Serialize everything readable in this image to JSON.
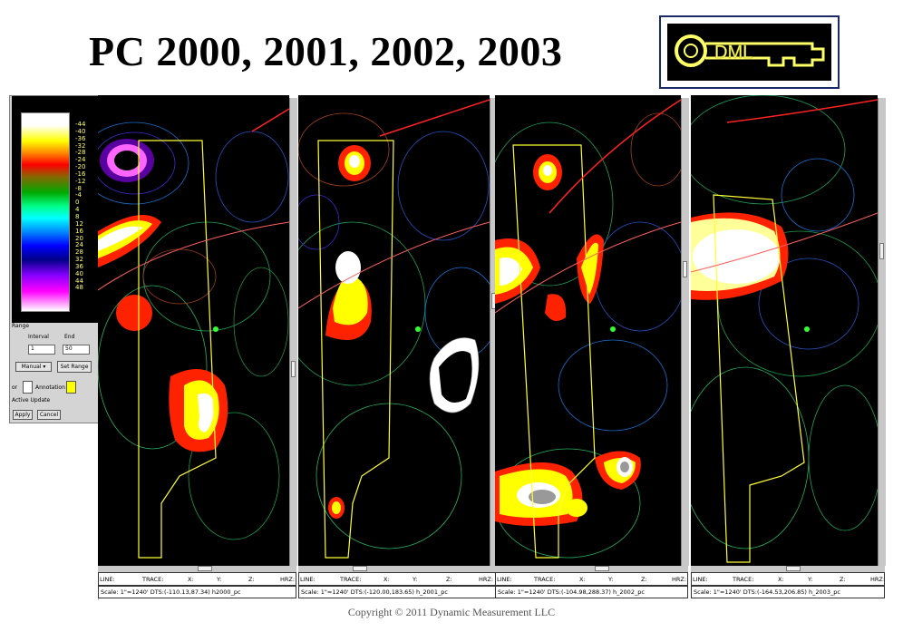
{
  "title": "PC 2000, 2001, 2002, 2003",
  "logo": {
    "text": "DML"
  },
  "colors": {
    "contour_outline": "#ffff33",
    "well_path": "#ff2222",
    "background": "#000000"
  },
  "legend": {
    "ticks": [
      "-44",
      "-40",
      "-36",
      "-32",
      "-28",
      "-24",
      "-20",
      "-16",
      "-12",
      "-8",
      "-4",
      "0",
      "4",
      "8",
      "12",
      "16",
      "20",
      "24",
      "28",
      "32",
      "36",
      "40",
      "44",
      "48"
    ]
  },
  "controls": {
    "range_label": "Range",
    "interval_label": "Interval",
    "end_label": "End",
    "interval_value": "1",
    "end_value": "50",
    "mode_value": "Manual",
    "set_range_label": "Set Range",
    "color_label": "or",
    "annotation_label": "Annotation",
    "active_update_label": "Active Update",
    "apply_label": "Apply",
    "cancel_label": "Cancel"
  },
  "status_labels": {
    "line": "LINE:",
    "trace": "TRACE:",
    "x": "X:",
    "y": "Y:",
    "z": "Z:",
    "hrz": "HRZ:"
  },
  "panels": [
    {
      "scale": "Scale: 1\"=1240'  DTS:(-110.13,87.34)  h2000_pc"
    },
    {
      "scale": "Scale: 1\"=1240'  DTS:(-120.00,183.65)  h_2001_pc"
    },
    {
      "scale": "Scale: 1\"=1240'  DTS:(-104.98,288.37)  h_2002_pc"
    },
    {
      "scale": "Scale: 1\"=1240'  DTS:(-164.53,206.85)  h_2003_pc"
    }
  ],
  "copyright": "Copyright © 2011  Dynamic  Measurement LLC"
}
